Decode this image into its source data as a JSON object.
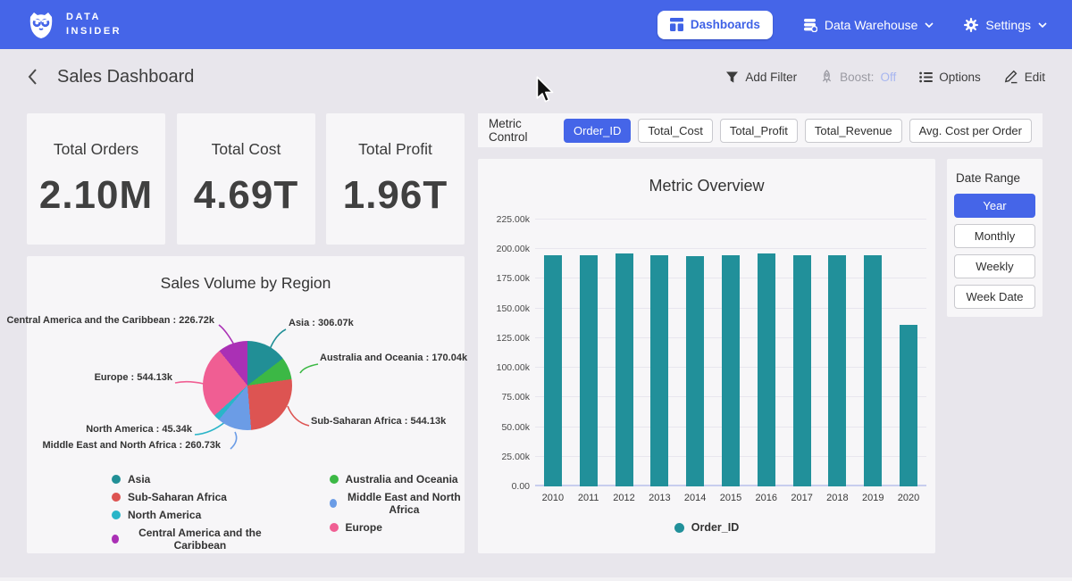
{
  "navbar": {
    "brand_line1": "DATA",
    "brand_line2": "INSIDER",
    "dashboards_label": "Dashboards",
    "data_warehouse_label": "Data Warehouse",
    "settings_label": "Settings"
  },
  "header": {
    "title": "Sales Dashboard",
    "add_filter_label": "Add Filter",
    "boost_label": "Boost:",
    "boost_value": "Off",
    "options_label": "Options",
    "edit_label": "Edit"
  },
  "kpis": [
    {
      "label": "Total Orders",
      "value": "2.10M"
    },
    {
      "label": "Total Cost",
      "value": "4.69T"
    },
    {
      "label": "Total Profit",
      "value": "1.96T"
    }
  ],
  "metric_control": {
    "label": "Metric Control",
    "options": [
      {
        "label": "Order_ID",
        "selected": true
      },
      {
        "label": "Total_Cost",
        "selected": false
      },
      {
        "label": "Total_Profit",
        "selected": false
      },
      {
        "label": "Total_Revenue",
        "selected": false
      },
      {
        "label": "Avg. Cost per Order",
        "selected": false
      }
    ]
  },
  "date_range": {
    "label": "Date Range",
    "options": [
      {
        "label": "Year",
        "selected": true
      },
      {
        "label": "Monthly",
        "selected": false
      },
      {
        "label": "Weekly",
        "selected": false
      },
      {
        "label": "Week Date",
        "selected": false
      }
    ]
  },
  "icons": {
    "logo": "owl-logo",
    "dashboards": "dashboard-grid-icon",
    "data_warehouse": "database-icon",
    "settings": "gear-icon",
    "back": "chevron-left-icon",
    "add_filter": "filter-funnel-icon",
    "boost": "rocket-icon",
    "options": "list-icon",
    "edit": "pencil-icon",
    "dropdown": "chevron-down-icon",
    "pointer": "mouse-cursor"
  },
  "colors": {
    "navbar_blue": "#4565e8",
    "selected_blue": "#4565e8",
    "page_bg": "#e8e6ec",
    "card_bg": "#f7f6f8",
    "bar_teal": "#21909a",
    "boost_off": "#a7b6f0"
  },
  "chart_data": [
    {
      "type": "bar",
      "title": "Metric Overview",
      "categories": [
        "2010",
        "2011",
        "2012",
        "2013",
        "2014",
        "2015",
        "2016",
        "2017",
        "2018",
        "2019",
        "2020"
      ],
      "series": [
        {
          "name": "Order_ID",
          "values": [
            195000,
            195000,
            196200,
            194800,
            194500,
            194700,
            196300,
            195200,
            194800,
            195000,
            136500
          ]
        }
      ],
      "ylim": [
        0,
        225000
      ],
      "ytick_step": 25000,
      "ytick_labels": [
        "0.00",
        "25.00k",
        "50.00k",
        "75.00k",
        "100.00k",
        "125.00k",
        "150.00k",
        "175.00k",
        "200.00k",
        "225.00k"
      ],
      "bar_color": "#21909a",
      "grid": true,
      "legend_position": "bottom"
    },
    {
      "type": "pie",
      "title": "Sales Volume by Region",
      "slices": [
        {
          "label": "Asia",
          "value": 306070,
          "value_label": "306.07k",
          "color": "#218f96"
        },
        {
          "label": "Australia and Oceania",
          "value": 170040,
          "value_label": "170.04k",
          "color": "#3cb845"
        },
        {
          "label": "Sub-Saharan Africa",
          "value": 544130,
          "value_label": "544.13k",
          "color": "#dd5452"
        },
        {
          "label": "Middle East and North Africa",
          "value": 260730,
          "value_label": "260.73k",
          "color": "#6b9ce6"
        },
        {
          "label": "North America",
          "value": 45340,
          "value_label": "45.34k",
          "color": "#2ab5c8"
        },
        {
          "label": "Europe",
          "value": 544130,
          "value_label": "544.13k",
          "color": "#f05e93"
        },
        {
          "label": "Central America and the Caribbean",
          "value": 226720,
          "value_label": "226.72k",
          "color": "#aa30b5"
        }
      ],
      "legend_position": "bottom"
    }
  ]
}
